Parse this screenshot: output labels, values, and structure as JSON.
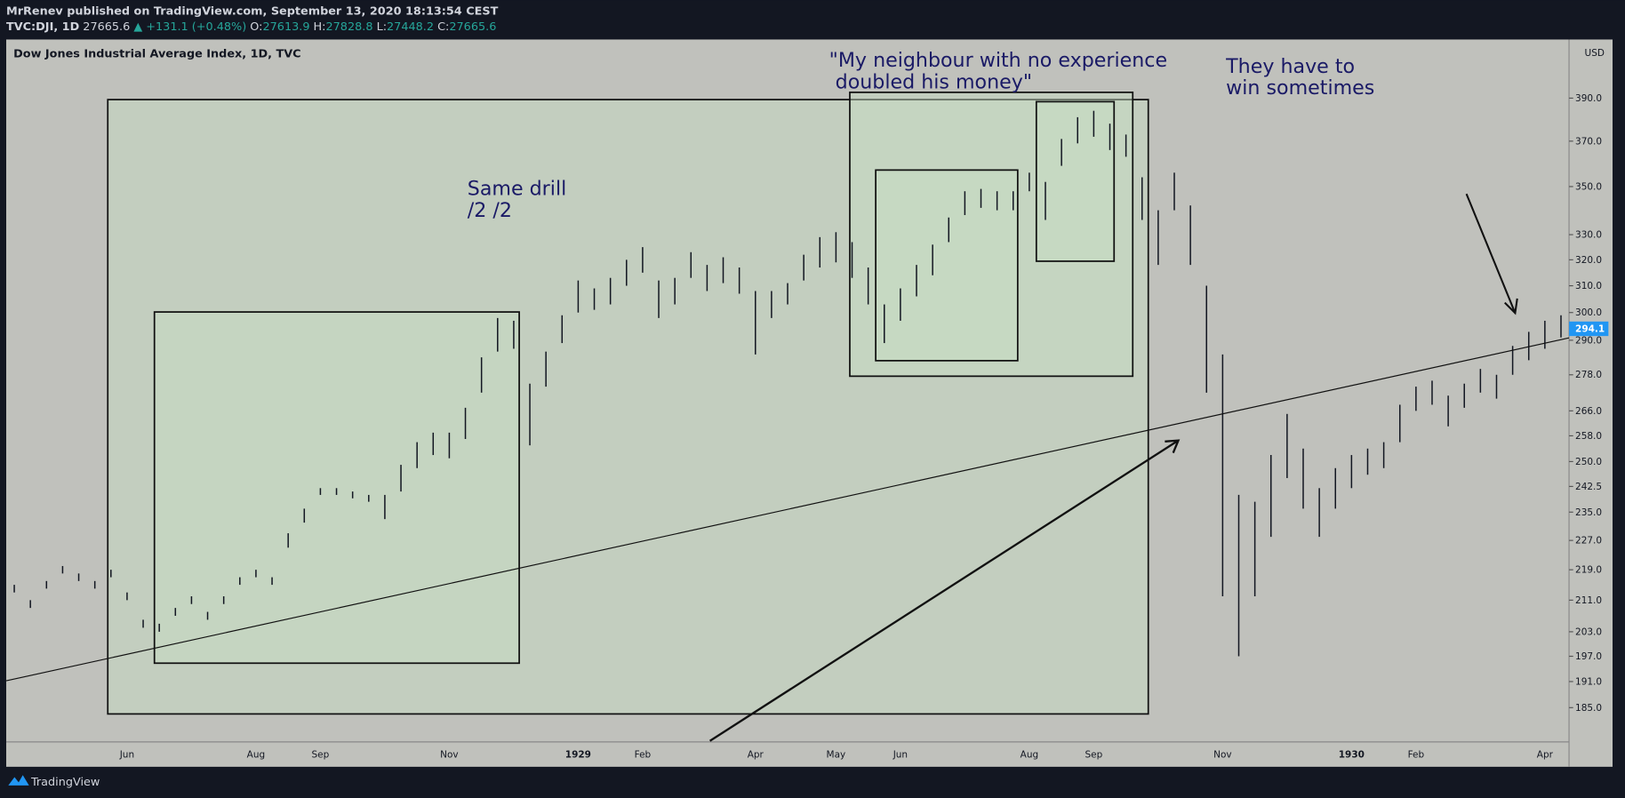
{
  "header": {
    "publisher": "MrRenev published on TradingView.com, September 13, 2020 18:13:54 CEST",
    "symbol": "TVC:DJI, 1D",
    "last": "27665.6",
    "change": "▲ +131.1 (+0.48%)",
    "ohlc": [
      {
        "label": "O:",
        "value": "27613.9"
      },
      {
        "label": "H:",
        "value": "27828.8"
      },
      {
        "label": "L:",
        "value": "27448.2"
      },
      {
        "label": "C:",
        "value": "27665.6"
      }
    ]
  },
  "footer": {
    "brand": "TradingView"
  },
  "chart_data": {
    "type": "ohlc",
    "title": "Dow Jones Industrial Average Index, 1D, TVC",
    "currency": "USD",
    "log_scale": true,
    "color": "#131722",
    "annotations": [
      [
        "Same drill",
        "/2 /2"
      ],
      [
        "\"My neighbour with no experience",
        " doubled his money\""
      ],
      [
        "They have to",
        "win sometimes"
      ]
    ],
    "last_value": 294.1,
    "categories": [
      null,
      null,
      null,
      null,
      null,
      null,
      null,
      "Jun",
      null,
      null,
      null,
      null,
      null,
      null,
      null,
      "Aug",
      null,
      null,
      null,
      "Sep",
      null,
      null,
      null,
      null,
      null,
      null,
      null,
      "Nov",
      null,
      null,
      null,
      null,
      null,
      null,
      null,
      "1929",
      null,
      null,
      null,
      "Feb",
      null,
      null,
      null,
      null,
      null,
      null,
      "Apr",
      null,
      null,
      null,
      null,
      "May",
      null,
      null,
      null,
      "Jun",
      null,
      null,
      null,
      null,
      null,
      null,
      null,
      "Aug",
      null,
      null,
      null,
      "Sep",
      null,
      null,
      null,
      null,
      null,
      null,
      null,
      "Nov",
      null,
      null,
      null,
      null,
      null,
      null,
      null,
      "1930",
      null,
      null,
      null,
      "Feb",
      null,
      null,
      null,
      null,
      null,
      null,
      null,
      "Apr",
      null
    ],
    "high": [
      215,
      211,
      216,
      220,
      218,
      216,
      219,
      213,
      206,
      205,
      209,
      212,
      208,
      212,
      217,
      219,
      217,
      229,
      236,
      242,
      242,
      241,
      240,
      240,
      249,
      256,
      259,
      259,
      267,
      284,
      298,
      297,
      275,
      286,
      299,
      312,
      309,
      313,
      320,
      325,
      312,
      313,
      323,
      318,
      321,
      317,
      308,
      308,
      311,
      322,
      329,
      331,
      327,
      317,
      303,
      309,
      318,
      326,
      337,
      348,
      349,
      348,
      348,
      356,
      352,
      371,
      381,
      384,
      378,
      373,
      354,
      340,
      356,
      342,
      310,
      285,
      240,
      238,
      252,
      265,
      254,
      242,
      248,
      252,
      254,
      256,
      268,
      274,
      276,
      271,
      275,
      280,
      278,
      288,
      293,
      297,
      299
    ],
    "low": [
      213,
      209,
      214,
      218,
      216,
      214,
      217,
      211,
      204,
      203,
      207,
      210,
      206,
      210,
      215,
      217,
      215,
      225,
      232,
      240,
      240,
      239,
      238,
      233,
      241,
      248,
      252,
      251,
      257,
      272,
      286,
      287,
      255,
      274,
      289,
      300,
      301,
      303,
      310,
      315,
      298,
      303,
      313,
      308,
      311,
      307,
      285,
      298,
      303,
      312,
      317,
      319,
      313,
      303,
      289,
      297,
      306,
      314,
      327,
      338,
      341,
      340,
      340,
      348,
      336,
      359,
      369,
      372,
      366,
      363,
      336,
      318,
      340,
      318,
      272,
      212,
      197,
      212,
      228,
      245,
      236,
      228,
      236,
      242,
      246,
      248,
      256,
      266,
      268,
      261,
      267,
      272,
      270,
      278,
      283,
      287,
      291
    ],
    "ylim": [
      177.4,
      419
    ],
    "yticks": [
      {
        "value": 185,
        "label": "185.0"
      },
      {
        "value": 191,
        "label": "191.0"
      },
      {
        "value": 197,
        "label": "197.0"
      },
      {
        "value": 203,
        "label": "203.0"
      },
      {
        "value": 211,
        "label": "211.0"
      },
      {
        "value": 219,
        "label": "219.0"
      },
      {
        "value": 227,
        "label": "227.0"
      },
      {
        "value": 235,
        "label": "235.0"
      },
      {
        "value": 242.5,
        "label": "242.5"
      },
      {
        "value": 250,
        "label": "250.0"
      },
      {
        "value": 258,
        "label": "258.0"
      },
      {
        "value": 266,
        "label": "266.0"
      },
      {
        "value": 278,
        "label": "278.0"
      },
      {
        "value": 290,
        "label": "290.0"
      },
      {
        "value": 300,
        "label": "300.0"
      },
      {
        "value": 310,
        "label": "310.0"
      },
      {
        "value": 320,
        "label": "320.0"
      },
      {
        "value": 330,
        "label": "330.0"
      },
      {
        "value": 350,
        "label": "350.0"
      },
      {
        "value": 370,
        "label": "370.0"
      },
      {
        "value": 390,
        "label": "390.0"
      }
    ]
  }
}
